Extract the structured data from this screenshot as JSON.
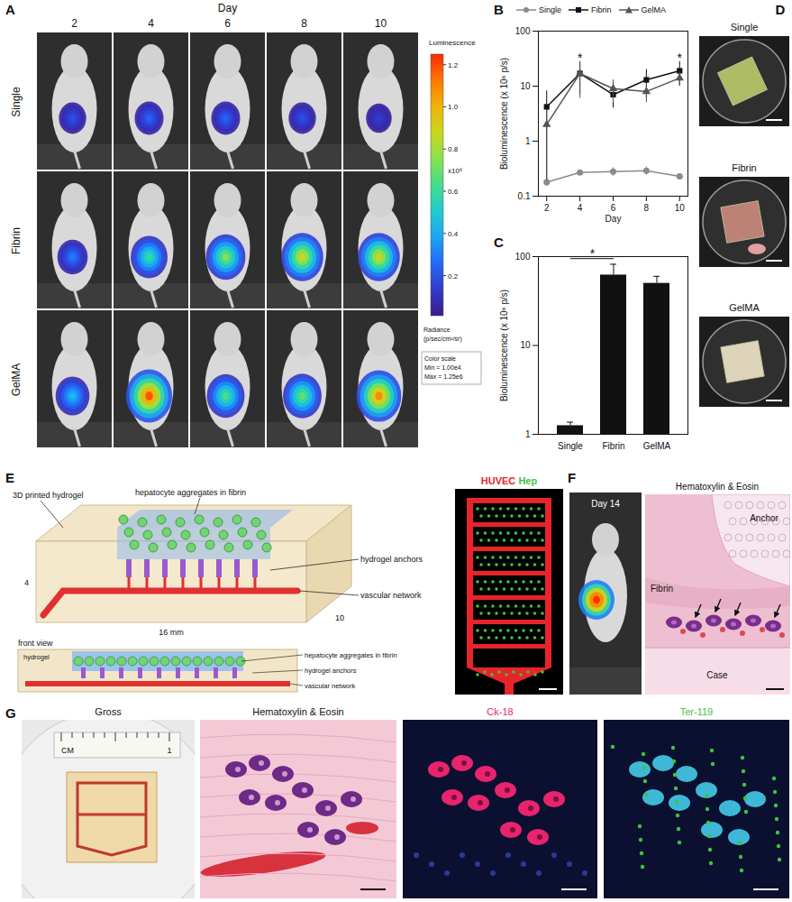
{
  "panels": {
    "A": {
      "panel_label": "A",
      "axis_title": "Day",
      "days": [
        2,
        4,
        6,
        8,
        10
      ],
      "rows": [
        "Single",
        "Fibrin",
        "GelMA"
      ],
      "peak_radiance": [
        [
          0.2,
          0.25,
          0.25,
          0.2,
          0.15
        ],
        [
          0.3,
          0.6,
          0.75,
          0.9,
          0.9
        ],
        [
          0.45,
          1.2,
          0.65,
          0.7,
          1.1
        ]
      ],
      "colorbar": {
        "title": "Luminescence",
        "range": [
          0.01,
          1.25
        ],
        "ticks": [
          1.2,
          {
            "value": 1.0,
            "label": "1.0"
          },
          0.8,
          0.6,
          0.4,
          0.2
        ],
        "multiplier": "x10⁶",
        "unit": [
          "Radiance",
          "(p/sec/cm²/sr)"
        ],
        "scale_note": [
          "Color scale",
          "Min = 1.00e4",
          "Max = 1.25e6"
        ]
      }
    },
    "D": {
      "panel_label": "D",
      "photos": [
        "Single",
        "Fibrin",
        "GelMA"
      ]
    },
    "E": {
      "panel_label": "E",
      "labels": {
        "hydrogel_3d": "3D printed hydrogel",
        "aggregates": "hepatocyte aggregates in fibrin",
        "anchors": "hydrogel anchors",
        "vascular": "vascular network"
      },
      "dimensions": {
        "height": "4",
        "depth": "10",
        "length": "16 mm"
      },
      "front_view": {
        "title": "front view",
        "hydrogel": "hydrogel",
        "aggregates": "hepatocyte aggregates in fibrin",
        "anchors": "hydrogel anchors",
        "vascular": "vascular network"
      },
      "image_channels": [
        {
          "name": "HUVEC",
          "color": "#e8242b"
        },
        {
          "name": "Hep",
          "color": "#3fc43f"
        }
      ]
    },
    "F": {
      "panel_label": "F",
      "photo_title": "Day 14",
      "stain_title": "Hematoxylin & Eosin",
      "regions": [
        "Anchor",
        "Fibrin",
        "Case"
      ]
    },
    "G": {
      "panel_label": "G",
      "images": [
        {
          "title": "Gross"
        },
        {
          "title": "Hematoxylin & Eosin"
        },
        {
          "title": "Ck-18",
          "color": "#e8246e"
        },
        {
          "title": "Ter-119",
          "color": "#3fc43f"
        }
      ],
      "ruler": [
        "CM",
        "1"
      ]
    }
  },
  "chart_data": [
    {
      "type": "line",
      "panel_label": "B",
      "x_label": "Day",
      "y_label": "Bioluminescence (x 10⁶ p/s)",
      "x": [
        2,
        4,
        6,
        8,
        10
      ],
      "xlim": [
        1.5,
        10.5
      ],
      "xticks": [
        2,
        4,
        6,
        8,
        10
      ],
      "ylim": [
        0.1,
        100
      ],
      "yticks": [
        0.1,
        1,
        10,
        100
      ],
      "log": "y",
      "legend": "top",
      "series": [
        {
          "name": "Single",
          "color": "#8a8a8a",
          "marker": "circle",
          "values": [
            0.18,
            0.27,
            0.28,
            0.29,
            0.23
          ],
          "errors": [
            0.03,
            0.02,
            0.05,
            0.05,
            0.02
          ]
        },
        {
          "name": "Fibrin",
          "color": "#111111",
          "marker": "square",
          "values": [
            4.2,
            17,
            7,
            13,
            19
          ],
          "errors": [
            4,
            10,
            3,
            7,
            9
          ]
        },
        {
          "name": "GelMA",
          "color": "#555555",
          "marker": "triangle",
          "values": [
            2,
            17,
            9,
            8,
            14
          ],
          "errors": [
            1.8,
            11,
            4,
            3,
            4
          ]
        }
      ],
      "annotations": [
        {
          "text": "*",
          "x": 4,
          "y": 32
        },
        {
          "text": "*",
          "x": 10,
          "y": 32
        }
      ]
    },
    {
      "type": "bar",
      "panel_label": "C",
      "y_label": "Bioluminescence (x 10⁶ p/s)",
      "categories": [
        "Single",
        "Fibrin",
        "GelMA"
      ],
      "values": [
        1.25,
        62,
        50
      ],
      "errors": [
        0.12,
        20,
        10
      ],
      "color": "#111111",
      "ylim": [
        1,
        100
      ],
      "yticks": [
        1,
        10,
        100
      ],
      "log": "y",
      "annotations": [
        {
          "text": "*",
          "from": "Single",
          "to": "Fibrin",
          "y": 95
        }
      ]
    }
  ]
}
